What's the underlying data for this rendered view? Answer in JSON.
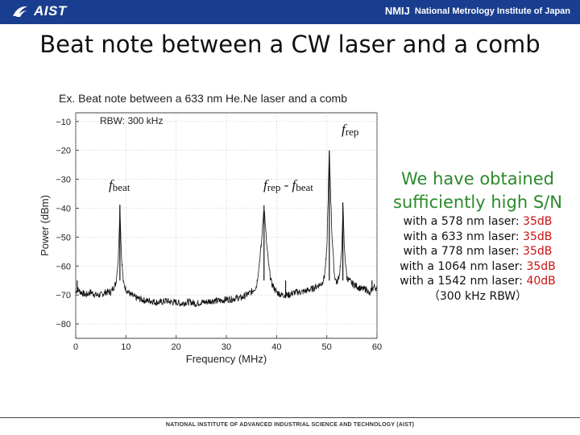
{
  "header": {
    "logo_text": "AIST",
    "nmij_mark": "NMIJ",
    "nmij_text": "National Metrology Institute of Japan",
    "colors": {
      "band": "#1a3e8f",
      "logo": "#ffffff"
    }
  },
  "title": "Beat note between a CW laser and a comb",
  "subtitle": "Ex. Beat note between a 633 nm He.Ne laser and a comb",
  "annotations": {
    "f_beat": {
      "f": "f",
      "sub": "beat"
    },
    "f_rep_minus_beat": {
      "f1": "f",
      "sub1": "rep",
      "minus": " - ",
      "f2": "f",
      "sub2": "beat"
    },
    "f_rep": {
      "f": "f",
      "sub": "rep"
    }
  },
  "claim": [
    "We have obtained",
    "sufficiently high S/N"
  ],
  "results": [
    {
      "text": "with a 578 nm laser: ",
      "value": "35dB"
    },
    {
      "text": "with a 633 nm laser: ",
      "value": "35dB"
    },
    {
      "text": "with a 778 nm laser: ",
      "value": "35dB"
    },
    {
      "text": "with a 1064 nm laser: ",
      "value": "35dB"
    },
    {
      "text": "with a 1542 nm laser: ",
      "value": "40dB"
    }
  ],
  "rbw_note": "（300 kHz RBW）",
  "footer": "NATIONAL INSTITUTE OF ADVANCED INDUSTRIAL SCIENCE AND TECHNOLOGY (AIST)",
  "chart_data": {
    "type": "line",
    "title": "",
    "inset_text": "RBW: 300 kHz",
    "xlabel": "Frequency (MHz)",
    "ylabel": "Power (dBm)",
    "xlim": [
      0,
      60
    ],
    "ylim": [
      -85,
      -7
    ],
    "xticks": [
      0,
      10,
      20,
      30,
      40,
      50,
      60
    ],
    "yticks": [
      -10,
      -20,
      -30,
      -40,
      -50,
      -60,
      -70,
      -80
    ],
    "grid": true,
    "noise_floor": -71,
    "peaks": [
      {
        "x": 0.3,
        "y": -68
      },
      {
        "x": 8.8,
        "y": -39
      },
      {
        "x": 37.5,
        "y": -39
      },
      {
        "x": 41.8,
        "y": -70
      },
      {
        "x": 50.5,
        "y": -20
      },
      {
        "x": 53.2,
        "y": -38
      },
      {
        "x": 59.0,
        "y": -68
      }
    ],
    "series": [
      {
        "x": [
          0,
          0.3,
          1,
          2,
          3,
          4,
          5,
          6,
          7,
          8,
          8.5,
          8.8,
          9.1,
          9.5,
          10,
          11,
          12,
          13,
          14,
          15,
          16,
          17,
          18,
          19,
          20,
          21,
          22,
          23,
          24,
          25,
          26,
          27,
          28,
          29,
          30,
          31,
          32,
          33,
          34,
          35,
          36,
          36.5,
          37,
          37.5,
          38,
          38.5,
          39,
          40,
          41,
          41.8,
          42.5,
          43,
          44,
          45,
          46,
          47,
          48,
          49,
          49.5,
          50,
          50.5,
          51,
          51.5,
          52,
          52.5,
          53,
          53.2,
          53.5,
          54,
          55,
          56,
          57,
          58,
          58.5,
          59,
          59.5,
          60
        ],
        "y": [
          -69,
          -68,
          -69,
          -70,
          -69,
          -70,
          -70,
          -69,
          -69,
          -66,
          -57,
          -39,
          -56,
          -66,
          -68,
          -70,
          -71,
          -71.5,
          -72,
          -72,
          -72.5,
          -72.5,
          -72,
          -72.5,
          -72.5,
          -73,
          -72.5,
          -72.5,
          -73,
          -72.5,
          -72.5,
          -72,
          -72,
          -72,
          -71.5,
          -71.5,
          -71,
          -71,
          -70,
          -69,
          -67,
          -60,
          -52,
          -39,
          -52,
          -61,
          -66,
          -69,
          -70,
          -70,
          -70,
          -69.5,
          -69,
          -69,
          -68.5,
          -68,
          -67,
          -66,
          -64,
          -55,
          -20,
          -48,
          -63,
          -66,
          -63,
          -55,
          -38,
          -54,
          -64,
          -66,
          -67,
          -68,
          -68,
          -70,
          -68,
          -67,
          -68
        ]
      }
    ]
  }
}
